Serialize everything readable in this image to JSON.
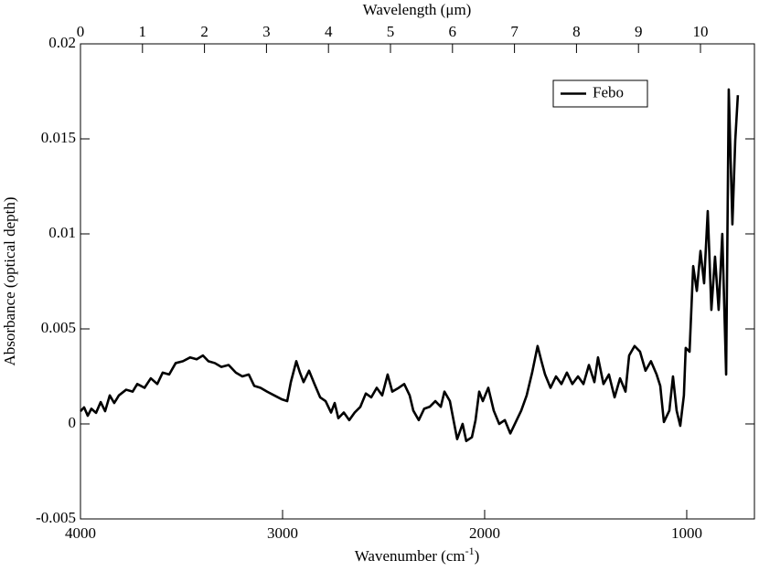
{
  "chart_data": {
    "type": "line",
    "x_label": {
      "text": "Wavenumber (cm",
      "sup": "-1",
      "suffix": ")"
    },
    "x2_label": "Wavelength (μm)",
    "y_label": "Absorbance (optical depth)",
    "xlim": [
      4000,
      665
    ],
    "xticks": [
      4000,
      3000,
      2000,
      1000
    ],
    "x2lim": [
      0,
      10.87
    ],
    "x2ticks": [
      0,
      1,
      2,
      3,
      4,
      5,
      6,
      7,
      8,
      9,
      10
    ],
    "ylim": [
      -0.005,
      0.02
    ],
    "yticks": [
      0.02,
      0.015,
      0.01,
      0.005,
      0,
      -0.005
    ],
    "legend": "upper right",
    "x": [
      4000,
      3982,
      3964,
      3946,
      3923,
      3900,
      3878,
      3855,
      3833,
      3810,
      3774,
      3742,
      3719,
      3683,
      3652,
      3620,
      3593,
      3561,
      3529,
      3493,
      3457,
      3425,
      3394,
      3367,
      3335,
      3303,
      3267,
      3231,
      3199,
      3167,
      3140,
      3109,
      3077,
      3041,
      3005,
      2977,
      2959,
      2932,
      2914,
      2896,
      2869,
      2842,
      2814,
      2787,
      2760,
      2742,
      2724,
      2697,
      2670,
      2643,
      2615,
      2588,
      2561,
      2534,
      2507,
      2480,
      2457,
      2425,
      2398,
      2371,
      2353,
      2326,
      2299,
      2272,
      2244,
      2217,
      2199,
      2172,
      2154,
      2136,
      2109,
      2091,
      2063,
      2045,
      2027,
      2009,
      1982,
      1955,
      1928,
      1900,
      1873,
      1846,
      1819,
      1792,
      1765,
      1738,
      1719,
      1701,
      1674,
      1647,
      1620,
      1593,
      1566,
      1538,
      1511,
      1484,
      1457,
      1439,
      1412,
      1385,
      1357,
      1330,
      1303,
      1285,
      1258,
      1231,
      1204,
      1177,
      1149,
      1131,
      1113,
      1086,
      1068,
      1050,
      1032,
      1014,
      1005,
      986,
      968,
      950,
      932,
      914,
      896,
      878,
      860,
      842,
      824,
      805,
      792,
      774,
      760,
      747
    ],
    "series": [
      {
        "name": "Febo",
        "color": "#000000",
        "values": [
          0.00067,
          0.00087,
          0.00043,
          0.0008,
          0.00058,
          0.00115,
          0.00067,
          0.0015,
          0.0011,
          0.0015,
          0.0018,
          0.0017,
          0.0021,
          0.0019,
          0.0024,
          0.0021,
          0.0027,
          0.0026,
          0.0032,
          0.0033,
          0.0035,
          0.0034,
          0.0036,
          0.0033,
          0.0032,
          0.003,
          0.0031,
          0.0027,
          0.0025,
          0.0026,
          0.002,
          0.0019,
          0.0017,
          0.0015,
          0.0013,
          0.0012,
          0.0022,
          0.0033,
          0.0027,
          0.0022,
          0.0028,
          0.0021,
          0.0014,
          0.0012,
          0.0006,
          0.0011,
          0.0003,
          0.0006,
          0.0002,
          0.0006,
          0.0009,
          0.0016,
          0.0014,
          0.0019,
          0.0015,
          0.0026,
          0.0017,
          0.0019,
          0.0021,
          0.0015,
          0.0007,
          0.0002,
          0.0008,
          0.0009,
          0.0012,
          0.0009,
          0.0017,
          0.0012,
          0.0002,
          -0.0008,
          0,
          -0.0009,
          -0.0007,
          0.0002,
          0.0017,
          0.0012,
          0.0019,
          0.0007,
          0,
          0.0002,
          -0.0005,
          0.0001,
          0.0007,
          0.0015,
          0.0027,
          0.0041,
          0.0033,
          0.0026,
          0.0019,
          0.0025,
          0.0021,
          0.0027,
          0.0021,
          0.0025,
          0.0021,
          0.0031,
          0.0022,
          0.0035,
          0.0021,
          0.0026,
          0.0014,
          0.0024,
          0.0017,
          0.0036,
          0.0041,
          0.0038,
          0.0028,
          0.0033,
          0.0026,
          0.002,
          0.0001,
          0.0007,
          0.0025,
          0.0007,
          -0.0001,
          0.0015,
          0.004,
          0.0038,
          0.0083,
          0.007,
          0.0091,
          0.0074,
          0.0112,
          0.006,
          0.0088,
          0.006,
          0.01,
          0.0026,
          0.0176,
          0.0105,
          0.0149,
          0.0173
        ]
      }
    ]
  }
}
